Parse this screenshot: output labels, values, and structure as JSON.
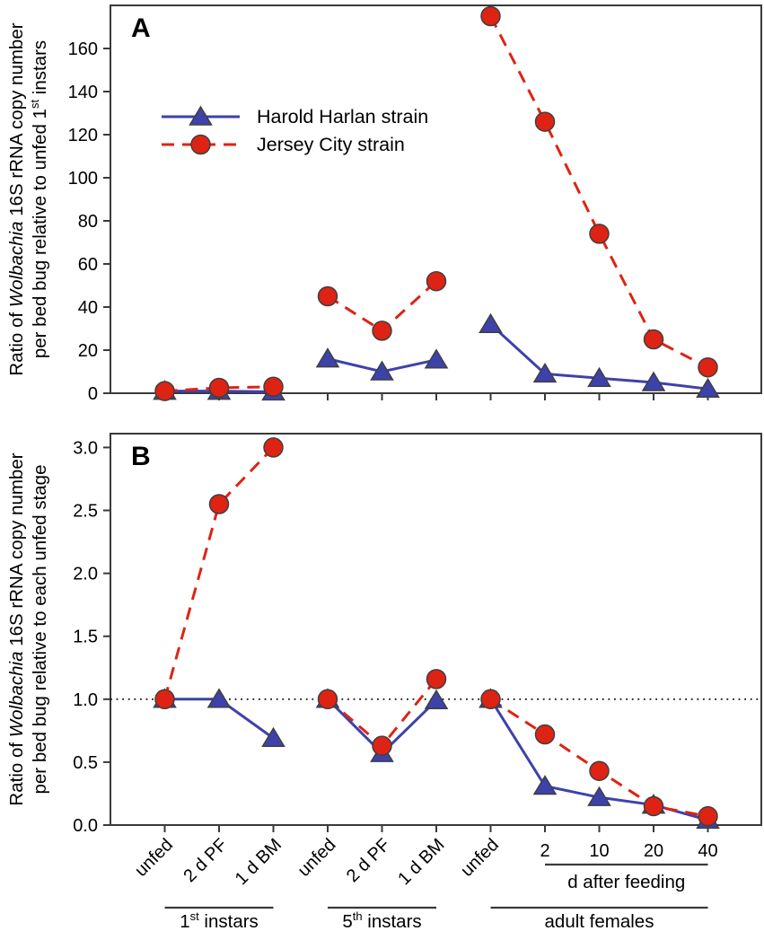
{
  "figure": {
    "panel_a_label": "A",
    "panel_b_label": "B",
    "legend": [
      {
        "label": "Harold Harlan strain",
        "marker": "triangle",
        "line_style": "solid",
        "color": "#3d42ab"
      },
      {
        "label": "Jersey City strain",
        "marker": "circle",
        "line_style": "dashed",
        "color": "#de2314"
      }
    ]
  },
  "colors": {
    "harold_blue": "#3d42ab",
    "jersey_red": "#de2314",
    "marker_edge": "#3f3f3f",
    "axis": "#3a3a3a",
    "text": "#000000",
    "background": "#ffffff"
  },
  "chart_data": [
    {
      "type": "line",
      "panel": "A",
      "categories": [
        "unfed",
        "2 d PF",
        "1 d BM",
        "unfed",
        "2 d PF",
        "1 d BM",
        "unfed",
        "2",
        "10",
        "20",
        "40"
      ],
      "category_groups": [
        [
          0,
          2
        ],
        [
          3,
          5
        ],
        [
          6,
          10
        ]
      ],
      "series": [
        {
          "name": "Harold Harlan strain",
          "color": "#3d42ab",
          "marker": "triangle",
          "line_style": "solid",
          "values": [
            1,
            1,
            0.7,
            16,
            10,
            15.5,
            32,
            9,
            7,
            5,
            2
          ]
        },
        {
          "name": "Jersey City strain",
          "color": "#de2314",
          "marker": "circle",
          "line_style": "dashed",
          "values": [
            1,
            2.5,
            3,
            45,
            29,
            52,
            175,
            126,
            74,
            25,
            12
          ]
        }
      ],
      "ylim": [
        0,
        180
      ],
      "yticks": [
        0,
        20,
        40,
        60,
        80,
        100,
        120,
        140,
        160
      ],
      "ytick_format": "int",
      "grid": false,
      "legend_position": "upper-left-inside",
      "ylabel_lines": [
        [
          {
            "t": "Ratio of "
          },
          {
            "t": "Wolbachia",
            "italic": true
          },
          {
            "t": " 16S rRNA copy number"
          }
        ],
        [
          {
            "t": "per bed bug relative to unfed 1"
          },
          {
            "t": "st",
            "sup": true
          },
          {
            "t": " instars"
          }
        ]
      ]
    },
    {
      "type": "line",
      "panel": "B",
      "categories": [
        "unfed",
        "2 d PF",
        "1 d BM",
        "unfed",
        "2 d PF",
        "1 d BM",
        "unfed",
        "2",
        "10",
        "20",
        "40"
      ],
      "category_groups": [
        [
          0,
          2
        ],
        [
          3,
          5
        ],
        [
          6,
          10
        ]
      ],
      "series": [
        {
          "name": "Harold Harlan strain",
          "color": "#3d42ab",
          "marker": "triangle",
          "line_style": "solid",
          "values": [
            1.0,
            1.0,
            0.69,
            1.0,
            0.57,
            0.99,
            1.0,
            0.31,
            0.22,
            0.16,
            0.04
          ]
        },
        {
          "name": "Jersey City strain",
          "color": "#de2314",
          "marker": "circle",
          "line_style": "dashed",
          "values": [
            1.0,
            2.55,
            3.0,
            1.0,
            0.63,
            1.16,
            1.0,
            0.72,
            0.43,
            0.15,
            0.07
          ]
        }
      ],
      "ylim": [
        0,
        3.11
      ],
      "yticks": [
        0.0,
        0.5,
        1.0,
        1.5,
        2.0,
        2.5,
        3.0
      ],
      "ytick_format": "1dp",
      "grid": false,
      "reference_line": 1.0,
      "ylabel_lines": [
        [
          {
            "t": "Ratio of "
          },
          {
            "t": "Wolbachia",
            "italic": true
          },
          {
            "t": " 16S rRNA copy number"
          }
        ],
        [
          {
            "t": "per bed bug relative to each unfed stage"
          }
        ]
      ]
    }
  ],
  "x_axis": {
    "rotated_tick_labels": [
      "unfed",
      "2 d PF",
      "1 d BM",
      "unfed",
      "2 d PF",
      "1 d BM",
      "unfed"
    ],
    "horizontal_tick_labels": [
      "2",
      "10",
      "20",
      "40"
    ],
    "subgroup": {
      "label": "d after feeding",
      "from": 7,
      "to": 10
    },
    "groups": [
      {
        "segments": [
          {
            "t": "1"
          },
          {
            "t": "st",
            "sup": true
          },
          {
            "t": " instars"
          }
        ],
        "from": 0,
        "to": 2
      },
      {
        "segments": [
          {
            "t": "5"
          },
          {
            "t": "th",
            "sup": true
          },
          {
            "t": " instars"
          }
        ],
        "from": 3,
        "to": 5
      },
      {
        "segments": [
          {
            "t": "adult females"
          }
        ],
        "from": 6,
        "to": 10
      }
    ]
  }
}
